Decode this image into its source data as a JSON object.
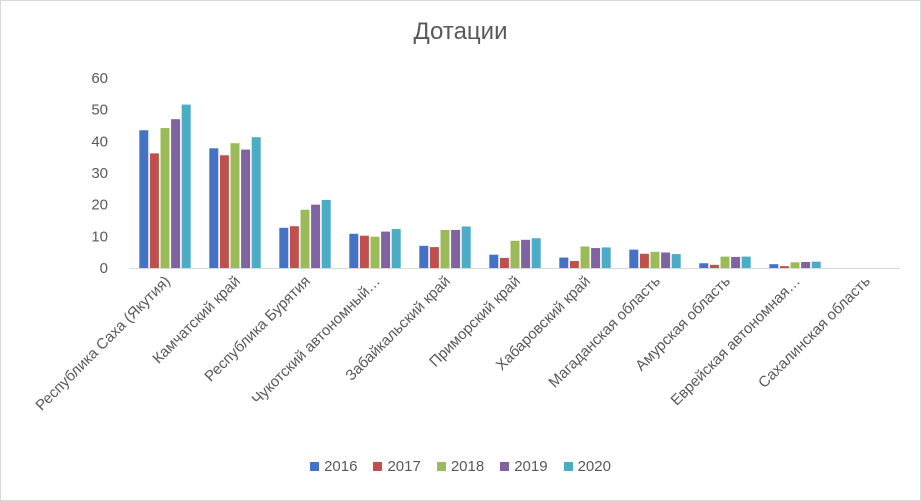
{
  "chart_data": {
    "type": "bar",
    "title": "Дотации",
    "xlabel": "",
    "ylabel": "",
    "ylim": [
      0,
      60
    ],
    "yticks": [
      0,
      10,
      20,
      30,
      40,
      50,
      60
    ],
    "grid": false,
    "legend_position": "bottom",
    "categories": [
      "Республика Саха (Якутия)",
      "Камчатский край",
      "Республика Бурятия",
      "Чукотский автономный…",
      "Забайкальский край",
      "Приморский край",
      "Хабаровский край",
      "Магаданская область",
      "Амурская область",
      "Еврейская автономная…",
      "Сахалинская область"
    ],
    "series": [
      {
        "name": "2016",
        "color": "#4472c4",
        "values": [
          43.5,
          37.8,
          12.7,
          10.8,
          7.0,
          4.2,
          3.3,
          5.8,
          1.5,
          1.2,
          0
        ]
      },
      {
        "name": "2017",
        "color": "#c0504d",
        "values": [
          36.2,
          35.6,
          13.2,
          10.2,
          6.6,
          3.2,
          2.2,
          4.5,
          1.0,
          0.6,
          0
        ]
      },
      {
        "name": "2018",
        "color": "#9bbb59",
        "values": [
          44.2,
          39.4,
          18.4,
          9.9,
          12.0,
          8.6,
          6.8,
          5.1,
          3.6,
          1.8,
          0
        ]
      },
      {
        "name": "2019",
        "color": "#8064a2",
        "values": [
          47.0,
          37.4,
          20.0,
          11.5,
          12.0,
          8.9,
          6.3,
          4.9,
          3.5,
          1.9,
          0
        ]
      },
      {
        "name": "2020",
        "color": "#4bacc6",
        "values": [
          51.6,
          41.3,
          21.5,
          12.3,
          13.1,
          9.4,
          6.5,
          4.4,
          3.6,
          2.0,
          0
        ]
      }
    ]
  }
}
